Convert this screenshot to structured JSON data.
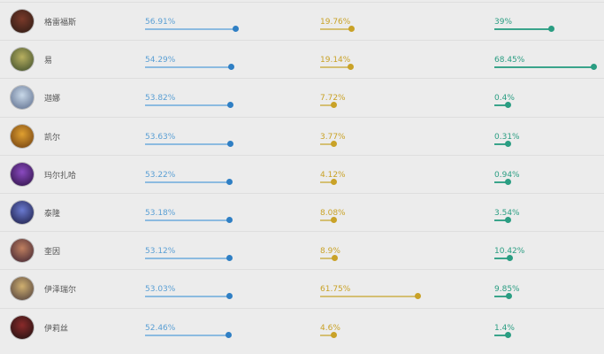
{
  "colors": {
    "win": "#5a9fd4",
    "pick": "#c9a227",
    "ban": "#2a9d82",
    "win_bar": "#8cbbe0",
    "pick_bar": "#d4bf73",
    "ban_bar": "#3aa48b"
  },
  "rows": [
    {
      "name": "格雷福斯",
      "win": "56.91%",
      "pick": "19.76%",
      "ban": "39%",
      "avatar": [
        "#7a3a2a",
        "#2a1a14"
      ]
    },
    {
      "name": "易",
      "win": "54.29%",
      "pick": "19.14%",
      "ban": "68.45%",
      "avatar": [
        "#b8b060",
        "#3a4a2a"
      ]
    },
    {
      "name": "迦娜",
      "win": "53.82%",
      "pick": "7.72%",
      "ban": "0.4%",
      "avatar": [
        "#c8d8e8",
        "#5a6a8a"
      ]
    },
    {
      "name": "凯尔",
      "win": "53.63%",
      "pick": "3.77%",
      "ban": "0.31%",
      "avatar": [
        "#e0a030",
        "#6a3a10"
      ]
    },
    {
      "name": "玛尔扎哈",
      "win": "53.22%",
      "pick": "4.12%",
      "ban": "0.94%",
      "avatar": [
        "#8a4ac0",
        "#2a1040"
      ]
    },
    {
      "name": "泰隆",
      "win": "53.18%",
      "pick": "8.08%",
      "ban": "3.54%",
      "avatar": [
        "#6a7ad0",
        "#1a1a40"
      ]
    },
    {
      "name": "奎因",
      "win": "53.12%",
      "pick": "8.9%",
      "ban": "10.42%",
      "avatar": [
        "#c08060",
        "#3a2030"
      ]
    },
    {
      "name": "伊泽瑞尔",
      "win": "53.03%",
      "pick": "61.75%",
      "ban": "9.85%",
      "avatar": [
        "#d0b070",
        "#4a3a3a"
      ]
    },
    {
      "name": "伊莉丝",
      "win": "52.46%",
      "pick": "4.6%",
      "ban": "1.4%",
      "avatar": [
        "#8a2a2a",
        "#1a1010"
      ]
    }
  ]
}
